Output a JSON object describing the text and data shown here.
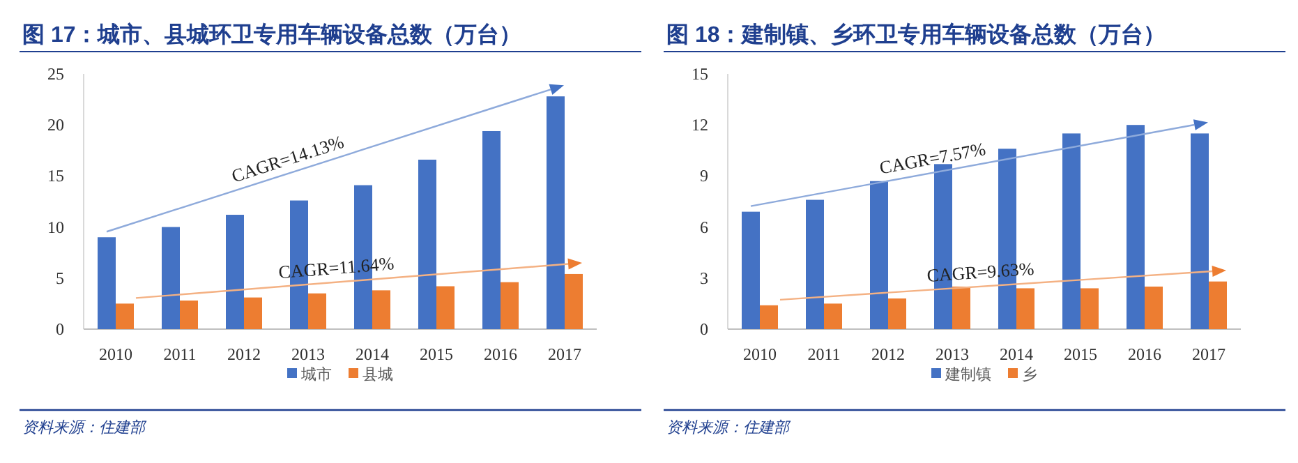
{
  "chart_data": [
    {
      "type": "bar",
      "title": "图 17：城市、县城环卫专用车辆设备总数（万台）",
      "categories": [
        "2010",
        "2011",
        "2012",
        "2013",
        "2014",
        "2015",
        "2016",
        "2017"
      ],
      "series": [
        {
          "name": "城市",
          "color": "#4472c4",
          "values": [
            9.0,
            10.0,
            11.2,
            12.6,
            14.1,
            16.6,
            19.4,
            22.8
          ]
        },
        {
          "name": "县城",
          "color": "#ed7d31",
          "values": [
            2.5,
            2.8,
            3.1,
            3.5,
            3.8,
            4.2,
            4.6,
            5.4
          ]
        }
      ],
      "ylim": [
        0,
        25
      ],
      "yticks": [
        0,
        5,
        10,
        15,
        20,
        25
      ],
      "legend": "bottom",
      "annotations": [
        "CAGR=14.13%",
        "CAGR=11.64%",
        "资料来源：住建部"
      ]
    },
    {
      "type": "bar",
      "title": "图 18：建制镇、乡环卫专用车辆设备总数（万台）",
      "categories": [
        "2010",
        "2011",
        "2012",
        "2013",
        "2014",
        "2015",
        "2016",
        "2017"
      ],
      "series": [
        {
          "name": "建制镇",
          "color": "#4472c4",
          "values": [
            6.9,
            7.6,
            8.7,
            9.7,
            10.6,
            11.5,
            12.0,
            11.5
          ]
        },
        {
          "name": "乡",
          "color": "#ed7d31",
          "values": [
            1.4,
            1.5,
            1.8,
            2.5,
            2.4,
            2.4,
            2.5,
            2.8
          ]
        }
      ],
      "ylim": [
        0,
        15
      ],
      "yticks": [
        0,
        3,
        6,
        9,
        12,
        15
      ],
      "legend": "bottom",
      "annotations": [
        "CAGR=7.57%",
        "CAGR=9.63%",
        "资料来源：住建部"
      ]
    }
  ]
}
